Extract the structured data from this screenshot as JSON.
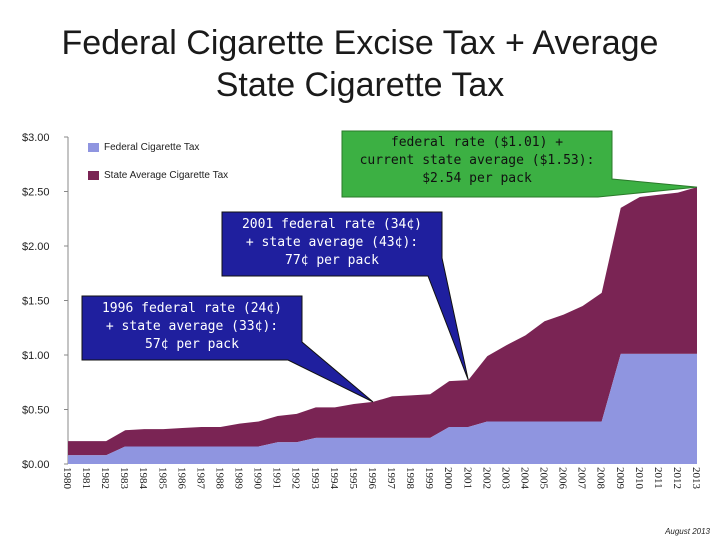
{
  "title_line1": "Federal Cigarette Excise Tax + Average",
  "title_line2": "State Cigarette Tax",
  "footnote": "August 2013",
  "colors": {
    "federal": "#8f95e0",
    "state": "#7a2454",
    "callout_green": "#3cb043",
    "callout_blue": "#1f1f9e"
  },
  "callouts": [
    {
      "lines": [
        "federal rate ($1.01) +",
        "current state average ($1.53):",
        "$2.54 per pack"
      ],
      "target_year": "2013"
    },
    {
      "lines": [
        "2001 federal rate (34¢)",
        "+ state average (43¢):",
        "77¢ per pack"
      ],
      "target_year": "2001"
    },
    {
      "lines": [
        "1996 federal rate (24¢)",
        "+ state average (33¢):",
        "57¢ per pack"
      ],
      "target_year": "1996"
    }
  ],
  "chart_data": {
    "type": "area",
    "stacked": true,
    "x": [
      "1980",
      "1981",
      "1982",
      "1983",
      "1984",
      "1985",
      "1986",
      "1987",
      "1988",
      "1989",
      "1990",
      "1991",
      "1992",
      "1993",
      "1994",
      "1995",
      "1996",
      "1997",
      "1998",
      "1999",
      "2000",
      "2001",
      "2002",
      "2003",
      "2004",
      "2005",
      "2006",
      "2007",
      "2008",
      "2009",
      "2010",
      "2011",
      "2012",
      "2013"
    ],
    "yticks": [
      "$0.00",
      "$0.50",
      "$1.00",
      "$1.50",
      "$2.00",
      "$2.50",
      "$3.00"
    ],
    "ylim": [
      0,
      3
    ],
    "series": [
      {
        "name": "Federal Cigarette Tax",
        "values": [
          0.08,
          0.08,
          0.08,
          0.16,
          0.16,
          0.16,
          0.16,
          0.16,
          0.16,
          0.16,
          0.16,
          0.2,
          0.2,
          0.24,
          0.24,
          0.24,
          0.24,
          0.24,
          0.24,
          0.24,
          0.34,
          0.34,
          0.39,
          0.39,
          0.39,
          0.39,
          0.39,
          0.39,
          0.39,
          1.01,
          1.01,
          1.01,
          1.01,
          1.01
        ]
      },
      {
        "name": "State Average Cigarette Tax",
        "values": [
          0.13,
          0.13,
          0.13,
          0.15,
          0.16,
          0.16,
          0.17,
          0.18,
          0.18,
          0.21,
          0.23,
          0.24,
          0.26,
          0.28,
          0.28,
          0.31,
          0.33,
          0.38,
          0.39,
          0.4,
          0.42,
          0.43,
          0.6,
          0.7,
          0.79,
          0.92,
          0.98,
          1.06,
          1.18,
          1.34,
          1.44,
          1.46,
          1.48,
          1.53
        ]
      }
    ],
    "legend_position": "top-left"
  }
}
